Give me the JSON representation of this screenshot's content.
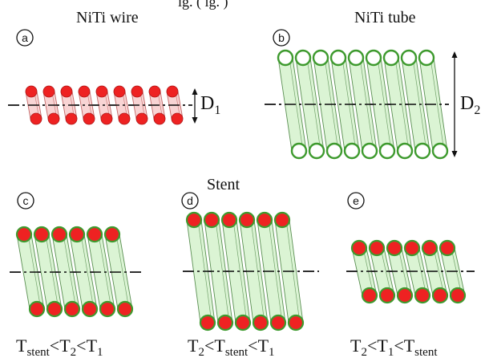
{
  "header": {
    "top_left_partial": "ig. ( ig. )"
  },
  "sections": {
    "wire_title": "NiTi wire",
    "tube_title": "NiTi tube",
    "stent_title": "Stent"
  },
  "panels": [
    {
      "id": "a",
      "letter": "a"
    },
    {
      "id": "b",
      "letter": "b"
    },
    {
      "id": "c",
      "letter": "c"
    },
    {
      "id": "d",
      "letter": "d"
    },
    {
      "id": "e",
      "letter": "e"
    }
  ],
  "dimensions": {
    "d1": {
      "main": "D",
      "sub": "1"
    },
    "d2": {
      "main": "D",
      "sub": "2"
    }
  },
  "conditions": {
    "c": [
      {
        "t": "T"
      },
      {
        "t": "stent",
        "sub": true
      },
      {
        "t": "<T"
      },
      {
        "t": "2",
        "sub": true
      },
      {
        "t": "<T"
      },
      {
        "t": "1",
        "sub": true
      }
    ],
    "d": [
      {
        "t": "T"
      },
      {
        "t": "2",
        "sub": true
      },
      {
        "t": "<T"
      },
      {
        "t": "stent",
        "sub": true
      },
      {
        "t": "<T"
      },
      {
        "t": "1",
        "sub": true
      }
    ],
    "e": [
      {
        "t": "T"
      },
      {
        "t": "2",
        "sub": true
      },
      {
        "t": "<T"
      },
      {
        "t": "1",
        "sub": true
      },
      {
        "t": "<T"
      },
      {
        "t": "stent",
        "sub": true
      }
    ]
  },
  "colors": {
    "wire_red": "#ee2222",
    "wire_red_dark": "#b01818",
    "wire_body_pink": "#f7cccc",
    "tube_green_fill": "#d5f2cd",
    "tube_green_edge": "#3e9a2e",
    "line": "#111111"
  }
}
